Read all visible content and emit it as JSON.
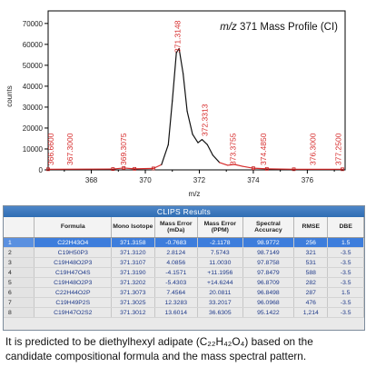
{
  "chart_data": {
    "type": "line",
    "title_italic": "m/z",
    "title_rest": " 371 Mass Profile (CI)",
    "xlabel": "m/z",
    "ylabel": "counts",
    "xlim": [
      366.4,
      377.4
    ],
    "ylim": [
      0,
      76000
    ],
    "xticks": [
      368,
      370,
      372,
      374,
      376
    ],
    "yticks": [
      0,
      10000,
      20000,
      30000,
      40000,
      50000,
      60000,
      70000
    ],
    "points": [
      [
        366.4,
        300
      ],
      [
        368.8,
        400
      ],
      [
        369.2,
        900
      ],
      [
        369.6,
        500
      ],
      [
        370.3,
        700
      ],
      [
        370.6,
        2500
      ],
      [
        370.85,
        12000
      ],
      [
        371.0,
        33000
      ],
      [
        371.15,
        56000
      ],
      [
        371.25,
        58000
      ],
      [
        371.4,
        46000
      ],
      [
        371.55,
        28000
      ],
      [
        371.75,
        17000
      ],
      [
        371.95,
        13000
      ],
      [
        372.1,
        14500
      ],
      [
        372.3,
        12000
      ],
      [
        372.5,
        7000
      ],
      [
        372.75,
        3500
      ],
      [
        373.05,
        2200
      ],
      [
        373.3,
        2600
      ],
      [
        373.6,
        1700
      ],
      [
        374.0,
        800
      ],
      [
        374.5,
        500
      ],
      [
        375.5,
        300
      ],
      [
        377.3,
        300
      ]
    ],
    "peak_labels": [
      {
        "mz": 366.6,
        "label": "366.6600"
      },
      {
        "mz": 367.3,
        "label": "367.3000"
      },
      {
        "mz": 369.3,
        "label": "369.3075"
      },
      {
        "mz": 371.3,
        "label": "371.3148"
      },
      {
        "mz": 372.3,
        "label": "372.3313"
      },
      {
        "mz": 373.35,
        "label": "373.3755"
      },
      {
        "mz": 374.48,
        "label": "374.4850"
      },
      {
        "mz": 376.3,
        "label": "376.3000"
      },
      {
        "mz": 377.25,
        "label": "377.2500"
      }
    ],
    "colors": {
      "profile_low": "#d62a2a",
      "profile_high": "#111111",
      "labels": "#d62a2a",
      "axis": "#000000"
    }
  },
  "results": {
    "title": "CLIPS Results",
    "columns": [
      "",
      "Formula",
      "Mono Isotope",
      "Mass Error (mDa)",
      "Mass Error (PPM)",
      "Spectral Accuracy",
      "RMSE",
      "DBE"
    ],
    "rows": [
      [
        "1",
        "C22H43O4",
        "371.3158",
        "-0.7683",
        "-2.1178",
        "98.9772",
        "256",
        "1.5"
      ],
      [
        "2",
        "C19H50P3",
        "371.3120",
        "2.8124",
        "7.5743",
        "98.7149",
        "321",
        "-3.5"
      ],
      [
        "3",
        "C19H48O2P3",
        "371.3107",
        "4.0856",
        "11.0030",
        "97.8758",
        "531",
        "-3.5"
      ],
      [
        "4",
        "C19H47O4S",
        "371.3190",
        "-4.1571",
        "+11.1956",
        "97.8479",
        "588",
        "-3.5"
      ],
      [
        "5",
        "C19H48O2P3",
        "371.3202",
        "-5.4303",
        "+14.6244",
        "96.8709",
        "282",
        "-3.5"
      ],
      [
        "6",
        "C22H44O2P",
        "371.3073",
        "7.4564",
        "20.0811",
        "96.8498",
        "287",
        "1.5"
      ],
      [
        "7",
        "C19H49P2S",
        "371.3025",
        "12.3283",
        "33.2017",
        "96.0968",
        "476",
        "-3.5"
      ],
      [
        "8",
        "C19H47O2S2",
        "371.3012",
        "13.6014",
        "36.6305",
        "95.1422",
        "1,214",
        "-3.5"
      ]
    ],
    "selected_row": 0
  },
  "caption": {
    "line1": "It is predicted to be diethylhexyl adipate (C₂₂H₄₂O₄) based on the",
    "line2": "candidate compositional formula and the mass spectral pattern."
  }
}
